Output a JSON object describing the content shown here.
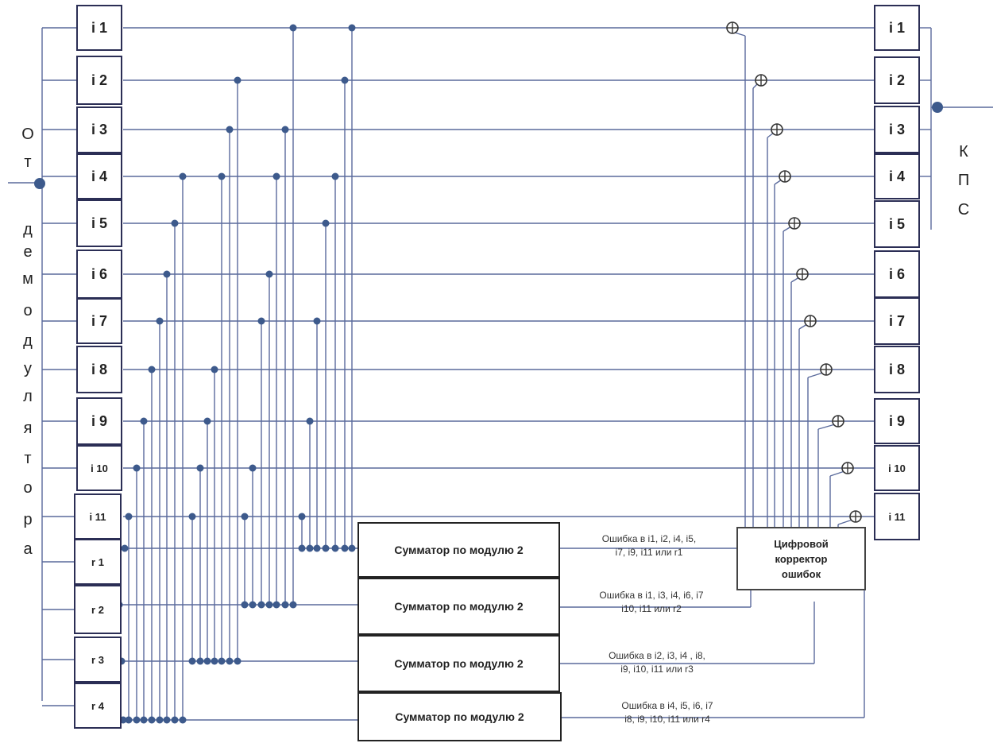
{
  "left_label_letters": [
    "О",
    "т",
    "д",
    "е",
    "м",
    "о",
    "д",
    "у",
    "л",
    "я",
    "т",
    "о",
    "р",
    "а"
  ],
  "right_label_letters": [
    "К",
    "П",
    "С"
  ],
  "input_registers": [
    "i 1",
    "i 2",
    "i 3",
    "i 4",
    "i 5",
    "i 6",
    "i 7",
    "i 8",
    "i 9",
    "i 10",
    "i 11",
    "r 1",
    "r 2",
    "r 3",
    "r 4"
  ],
  "output_registers": [
    "i 1",
    "i 2",
    "i 3",
    "i 4",
    "i 5",
    "i 6",
    "i 7",
    "i 8",
    "i 9",
    "i 10",
    "i 11"
  ],
  "adders": [
    {
      "label": "Сумматор по модулю 2",
      "error_line1": "Ошибка в i1, i2, i4, i5,",
      "error_line2": "i7, i9, i11 или r1"
    },
    {
      "label": "Сумматор по модулю 2",
      "error_line1": "Ошибка в i1, i3, i4, i6, i7",
      "error_line2": "i10, i11 или r2"
    },
    {
      "label": "Сумматор по модулю 2",
      "error_line1": "Ошибка в i2, i3, i4 , i8,",
      "error_line2": "i9, i10, i11 или r3"
    },
    {
      "label": "Сумматор по модулю 2",
      "error_line1": "Ошибка в i4, i5, i6, i7",
      "error_line2": "i8, i9, i10, i11  или r4"
    }
  ],
  "corrector": {
    "line1": "Цифровой",
    "line2": "корректор",
    "line3": "ошибок"
  },
  "colors": {
    "line": "#5a6a9c",
    "dot": "#3d5a8c",
    "box_border": "#2b2e55"
  }
}
